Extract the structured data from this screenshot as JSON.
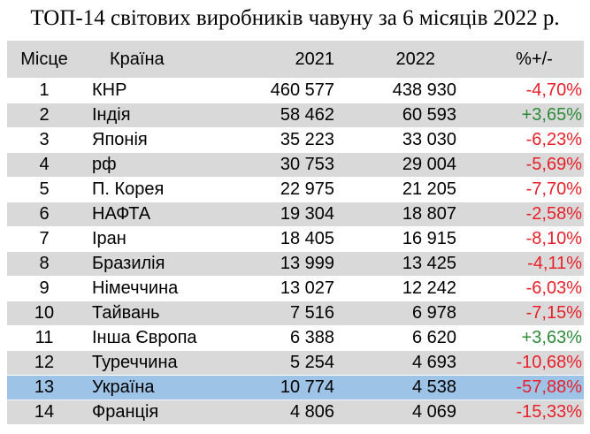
{
  "title": "ТОП-14 світових виробників чавуну за 6 місяців 2022 р.",
  "chart_data": {
    "type": "table",
    "title": "ТОП-14 світових виробників чавуну за 6 місяців 2022 р.",
    "columns": [
      "Місце",
      "Країна",
      "2021",
      "2022",
      "%+/-"
    ],
    "rows": [
      {
        "place": "1",
        "country": "КНР",
        "y2021": "460 577",
        "y2022": "438 930",
        "change": "-4,70%",
        "trend": "neg",
        "highlight": false
      },
      {
        "place": "2",
        "country": "Індія",
        "y2021": "58 462",
        "y2022": "60 593",
        "change": "+3,65%",
        "trend": "pos",
        "highlight": false
      },
      {
        "place": "3",
        "country": "Японія",
        "y2021": "35 223",
        "y2022": "33 030",
        "change": "-6,23%",
        "trend": "neg",
        "highlight": false
      },
      {
        "place": "4",
        "country": "рф",
        "y2021": "30 753",
        "y2022": "29 004",
        "change": "-5,69%",
        "trend": "neg",
        "highlight": false
      },
      {
        "place": "5",
        "country": "П. Корея",
        "y2021": "22 975",
        "y2022": "21 205",
        "change": "-7,70%",
        "trend": "neg",
        "highlight": false
      },
      {
        "place": "6",
        "country": "НАФТА",
        "y2021": "19 304",
        "y2022": "18 807",
        "change": "-2,58%",
        "trend": "neg",
        "highlight": false
      },
      {
        "place": "7",
        "country": "Іран",
        "y2021": "18 405",
        "y2022": "16 915",
        "change": "-8,10%",
        "trend": "neg",
        "highlight": false
      },
      {
        "place": "8",
        "country": "Бразилія",
        "y2021": "13 999",
        "y2022": "13 425",
        "change": "-4,11%",
        "trend": "neg",
        "highlight": false
      },
      {
        "place": "9",
        "country": "Німеччина",
        "y2021": "13 027",
        "y2022": "12 242",
        "change": "-6,03%",
        "trend": "neg",
        "highlight": false
      },
      {
        "place": "10",
        "country": "Тайвань",
        "y2021": "7 516",
        "y2022": "6 978",
        "change": "-7,15%",
        "trend": "neg",
        "highlight": false
      },
      {
        "place": "11",
        "country": "Інша Європа",
        "y2021": "6 388",
        "y2022": "6 620",
        "change": "+3,63%",
        "trend": "pos",
        "highlight": false
      },
      {
        "place": "12",
        "country": "Туреччина",
        "y2021": "5 254",
        "y2022": "4 693",
        "change": "-10,68%",
        "trend": "neg",
        "highlight": false
      },
      {
        "place": "13",
        "country": "Україна",
        "y2021": "10 774",
        "y2022": "4 538",
        "change": "-57,88%",
        "trend": "neg",
        "highlight": true
      },
      {
        "place": "14",
        "country": "Франція",
        "y2021": "4 806",
        "y2022": "4 069",
        "change": "-15,33%",
        "trend": "neg",
        "highlight": false
      }
    ]
  },
  "colors": {
    "header_bg": "#d9d9d9",
    "stripe_bg": "#d9d9d9",
    "highlight_bg": "#9dc3e6",
    "negative": "#e8202a",
    "positive": "#2e8b3a"
  }
}
